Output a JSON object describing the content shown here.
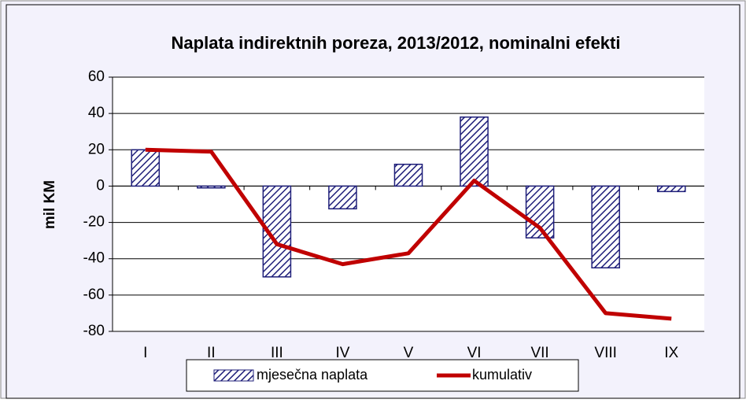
{
  "chart_data": {
    "type": "bar",
    "title": "Naplata indirektnih poreza, 2013/2012, nominalni efekti",
    "y_label": "mil KM",
    "categories": [
      "I",
      "II",
      "III",
      "IV",
      "V",
      "VI",
      "VII",
      "VIII",
      "IX"
    ],
    "series": [
      {
        "name": "mjesečna naplata",
        "type": "bar",
        "color": "#1f1f7a",
        "values": [
          20,
          -1,
          -50,
          -12.5,
          12,
          38,
          -28.5,
          -45,
          -3
        ]
      },
      {
        "name": "kumulativ",
        "type": "line",
        "color": "#c00000",
        "values": [
          20,
          19,
          -32,
          -43,
          -37,
          3,
          -23,
          -70,
          -73
        ]
      }
    ],
    "ylim": [
      -80,
      60
    ],
    "yticks": [
      60,
      40,
      20,
      0,
      -20,
      -40,
      -60,
      -80
    ],
    "grid": true,
    "legend": "bottom"
  }
}
